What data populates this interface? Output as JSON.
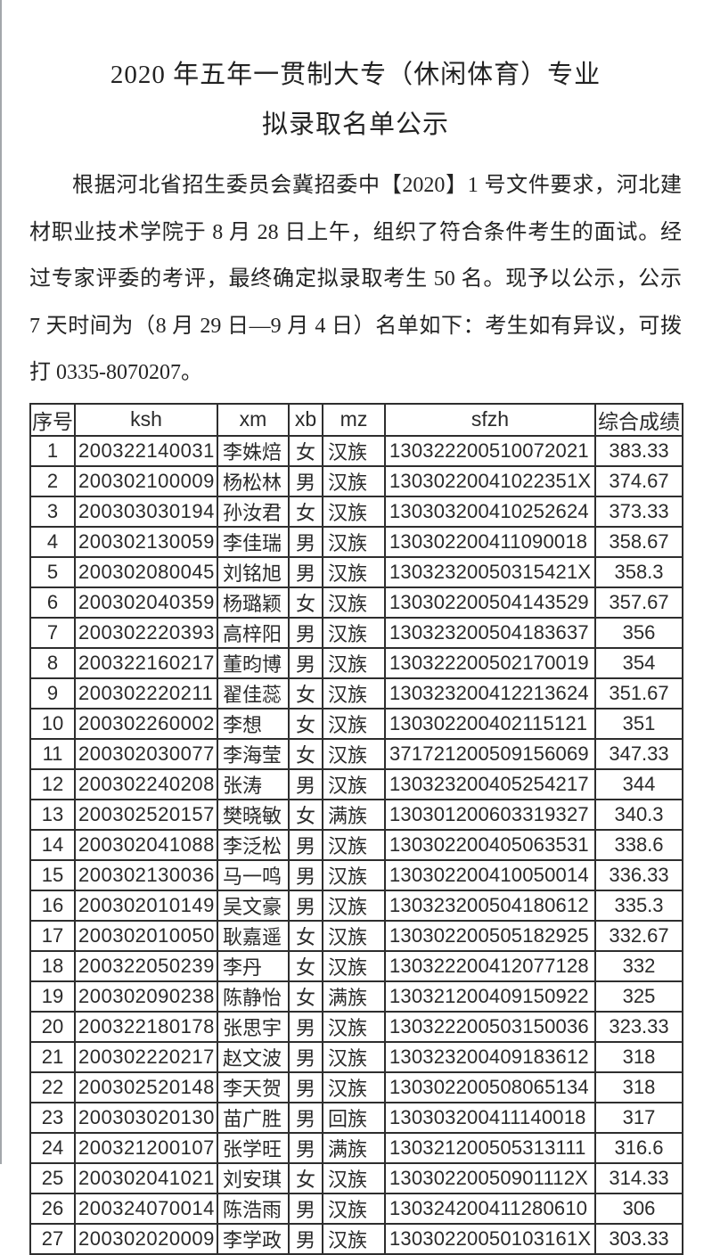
{
  "doc": {
    "title_line1": "2020 年五年一贯制大专（休闲体育）专业",
    "title_line2": "拟录取名单公示",
    "paragraph_lines": [
      "根据河北省招生委员会冀招委中【2020】1 号文件要求，河北建",
      "材职业技术学院于 8 月 28 日上午，组织了符合条件考生的面试。经",
      "过专家评委的考评，最终确定拟录取考生 50 名。现予以公示，公示",
      "7 天时间为（8 月 29 日—9 月 4 日）名单如下：考生如有异议，可拨",
      "打 0335-8070207。"
    ],
    "phone_number": "0335-8070207"
  },
  "table": {
    "headers": [
      "序号",
      "ksh",
      "xm",
      "xb",
      "mz",
      "sfzh",
      "综合成绩"
    ],
    "rows": [
      [
        "1",
        "200322140031",
        "李姝焙",
        "女",
        "汉族",
        "130322200510072021",
        "383.33"
      ],
      [
        "2",
        "200302100009",
        "杨松林",
        "男",
        "汉族",
        "13030220041022351X",
        "374.67"
      ],
      [
        "3",
        "200303030194",
        "孙汝君",
        "女",
        "汉族",
        "130303200410252624",
        "373.33"
      ],
      [
        "4",
        "200302130059",
        "李佳瑞",
        "男",
        "汉族",
        "130302200411090018",
        "358.67"
      ],
      [
        "5",
        "200302080045",
        "刘铭旭",
        "男",
        "汉族",
        "13032320050315421X",
        "358.3"
      ],
      [
        "6",
        "200302040359",
        "杨璐颖",
        "女",
        "汉族",
        "130302200504143529",
        "357.67"
      ],
      [
        "7",
        "200302220393",
        "高梓阳",
        "男",
        "汉族",
        "130323200504183637",
        "356"
      ],
      [
        "8",
        "200322160217",
        "董昀博",
        "男",
        "汉族",
        "130322200502170019",
        "354"
      ],
      [
        "9",
        "200302220211",
        "翟佳蕊",
        "女",
        "汉族",
        "130323200412213624",
        "351.67"
      ],
      [
        "10",
        "200302260002",
        "李想",
        "女",
        "汉族",
        "130302200402115121",
        "351"
      ],
      [
        "11",
        "200302030077",
        "李海莹",
        "女",
        "汉族",
        "371721200509156069",
        "347.33"
      ],
      [
        "12",
        "200302240208",
        "张涛",
        "男",
        "汉族",
        "130323200405254217",
        "344"
      ],
      [
        "13",
        "200302520157",
        "樊晓敏",
        "女",
        "满族",
        "130301200603319327",
        "340.3"
      ],
      [
        "14",
        "200302041088",
        "李泛松",
        "男",
        "汉族",
        "130302200405063531",
        "338.6"
      ],
      [
        "15",
        "200302130036",
        "马一鸣",
        "男",
        "汉族",
        "130302200410050014",
        "336.33"
      ],
      [
        "16",
        "200302010149",
        "吴文豪",
        "男",
        "汉族",
        "130323200504180612",
        "335.3"
      ],
      [
        "17",
        "200302010050",
        "耿嘉遥",
        "女",
        "汉族",
        "130302200505182925",
        "332.67"
      ],
      [
        "18",
        "200322050239",
        "李丹",
        "女",
        "汉族",
        "130322200412077128",
        "332"
      ],
      [
        "19",
        "200302090238",
        "陈静怡",
        "女",
        "满族",
        "130321200409150922",
        "325"
      ],
      [
        "20",
        "200322180178",
        "张思宇",
        "男",
        "汉族",
        "130322200503150036",
        "323.33"
      ],
      [
        "21",
        "200302220217",
        "赵文波",
        "男",
        "汉族",
        "130323200409183612",
        "318"
      ],
      [
        "22",
        "200302520148",
        "李天贺",
        "男",
        "汉族",
        "130302200508065134",
        "318"
      ],
      [
        "23",
        "200303020130",
        "苗广胜",
        "男",
        "回族",
        "130303200411140018",
        "317"
      ],
      [
        "24",
        "200321200107",
        "张学旺",
        "男",
        "满族",
        "130321200505313111",
        "316.6"
      ],
      [
        "25",
        "200302041021",
        "刘安琪",
        "女",
        "汉族",
        "13030220050901112X",
        "314.33"
      ],
      [
        "26",
        "200324070014",
        "陈浩雨",
        "男",
        "汉族",
        "130324200411280610",
        "306"
      ],
      [
        "27",
        "200302020009",
        "李学政",
        "男",
        "汉族",
        "13030220050103161X",
        "303.33"
      ]
    ]
  },
  "colors": {
    "page_bg": "#ffffff",
    "text": "#262626",
    "table_border": "#2e2e2e",
    "scan_edge": "#a3a7ab"
  }
}
